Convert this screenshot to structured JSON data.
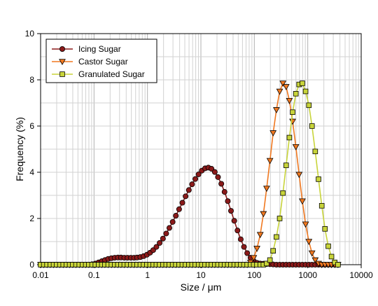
{
  "chart_data": {
    "type": "line",
    "xlabel": "Size / μm",
    "ylabel": "Frequency (%)",
    "xscale": "log",
    "xlim": [
      0.01,
      10000
    ],
    "ylim": [
      0,
      10
    ],
    "xticks": [
      "0.01",
      "0.1",
      "1",
      "10",
      "100",
      "1000",
      "10000"
    ],
    "yticks": [
      "0",
      "2",
      "4",
      "6",
      "8",
      "10"
    ],
    "grid": true,
    "legend_position": "top-left",
    "x": [
      0.01,
      0.0115,
      0.0132,
      0.0152,
      0.0175,
      0.02,
      0.023,
      0.0265,
      0.0305,
      0.035,
      0.04,
      0.046,
      0.053,
      0.061,
      0.07,
      0.08,
      0.092,
      0.106,
      0.122,
      0.14,
      0.16,
      0.184,
      0.212,
      0.244,
      0.28,
      0.32,
      0.368,
      0.424,
      0.488,
      0.56,
      0.64,
      0.736,
      0.848,
      0.976,
      1.12,
      1.28,
      1.47,
      1.69,
      1.95,
      2.24,
      2.57,
      2.96,
      3.4,
      3.91,
      4.5,
      5.17,
      5.95,
      6.84,
      7.87,
      9.05,
      10.4,
      12.0,
      13.8,
      15.8,
      18.2,
      20.9,
      24.1,
      27.7,
      31.9,
      36.6,
      42.1,
      48.4,
      55.7,
      64.0,
      73.6,
      84.7,
      97.4,
      112,
      129,
      148,
      170,
      196,
      225,
      259,
      298,
      343,
      394,
      453,
      521,
      599,
      689,
      792,
      911,
      1050,
      1200,
      1380,
      1590,
      1830,
      2100,
      2420,
      2780,
      3200,
      3680
    ],
    "series": [
      {
        "name": "Icing Sugar",
        "color": "#8b1a1a",
        "marker": "circle",
        "values": [
          0,
          0,
          0,
          0,
          0,
          0,
          0,
          0,
          0,
          0,
          0,
          0,
          0,
          0,
          0,
          0,
          0.02,
          0.05,
          0.1,
          0.15,
          0.2,
          0.25,
          0.28,
          0.3,
          0.31,
          0.31,
          0.3,
          0.3,
          0.3,
          0.3,
          0.31,
          0.33,
          0.37,
          0.43,
          0.52,
          0.63,
          0.77,
          0.94,
          1.13,
          1.35,
          1.59,
          1.85,
          2.12,
          2.4,
          2.68,
          2.96,
          3.23,
          3.48,
          3.71,
          3.91,
          4.07,
          4.17,
          4.2,
          4.15,
          4.01,
          3.79,
          3.5,
          3.15,
          2.75,
          2.33,
          1.9,
          1.48,
          1.1,
          0.77,
          0.5,
          0.3,
          0.16,
          0.08,
          0.05,
          0.04,
          0.03,
          0.02,
          0.01,
          0,
          0,
          0,
          0,
          0,
          0,
          0,
          0,
          0,
          0,
          0,
          0,
          0,
          0,
          0,
          0,
          0,
          0,
          0,
          0
        ]
      },
      {
        "name": "Castor Sugar",
        "color": "#f07820",
        "marker": "triangle-down",
        "values": [
          0,
          0,
          0,
          0,
          0,
          0,
          0,
          0,
          0,
          0,
          0,
          0,
          0,
          0,
          0,
          0,
          0,
          0,
          0,
          0,
          0,
          0,
          0,
          0,
          0,
          0,
          0,
          0,
          0,
          0,
          0,
          0,
          0,
          0,
          0,
          0,
          0,
          0,
          0,
          0,
          0,
          0,
          0,
          0,
          0,
          0,
          0,
          0,
          0,
          0,
          0,
          0,
          0,
          0,
          0,
          0,
          0,
          0,
          0,
          0,
          0,
          0,
          0,
          0,
          0,
          0.1,
          0.3,
          0.7,
          1.3,
          2.2,
          3.3,
          4.5,
          5.7,
          6.7,
          7.5,
          7.85,
          7.7,
          7.1,
          6.2,
          5.1,
          3.9,
          2.75,
          1.75,
          1.0,
          0.5,
          0.2,
          0.05,
          0,
          0,
          0,
          0,
          0,
          0
        ]
      },
      {
        "name": "Granulated Sugar",
        "color": "#c8d43a",
        "marker": "square",
        "values": [
          0,
          0,
          0,
          0,
          0,
          0,
          0,
          0,
          0,
          0,
          0,
          0,
          0,
          0,
          0,
          0,
          0,
          0,
          0,
          0,
          0,
          0,
          0,
          0,
          0,
          0,
          0,
          0,
          0,
          0,
          0,
          0,
          0,
          0,
          0,
          0,
          0,
          0,
          0,
          0,
          0,
          0,
          0,
          0,
          0,
          0,
          0,
          0,
          0,
          0,
          0,
          0,
          0,
          0,
          0,
          0,
          0,
          0,
          0,
          0,
          0,
          0,
          0,
          0,
          0,
          0,
          0,
          0,
          0,
          0,
          0.05,
          0.2,
          0.6,
          1.2,
          2.0,
          3.1,
          4.3,
          5.5,
          6.6,
          7.4,
          7.8,
          7.85,
          7.5,
          6.9,
          6.0,
          4.9,
          3.7,
          2.55,
          1.55,
          0.8,
          0.35,
          0.1,
          0
        ]
      }
    ]
  }
}
